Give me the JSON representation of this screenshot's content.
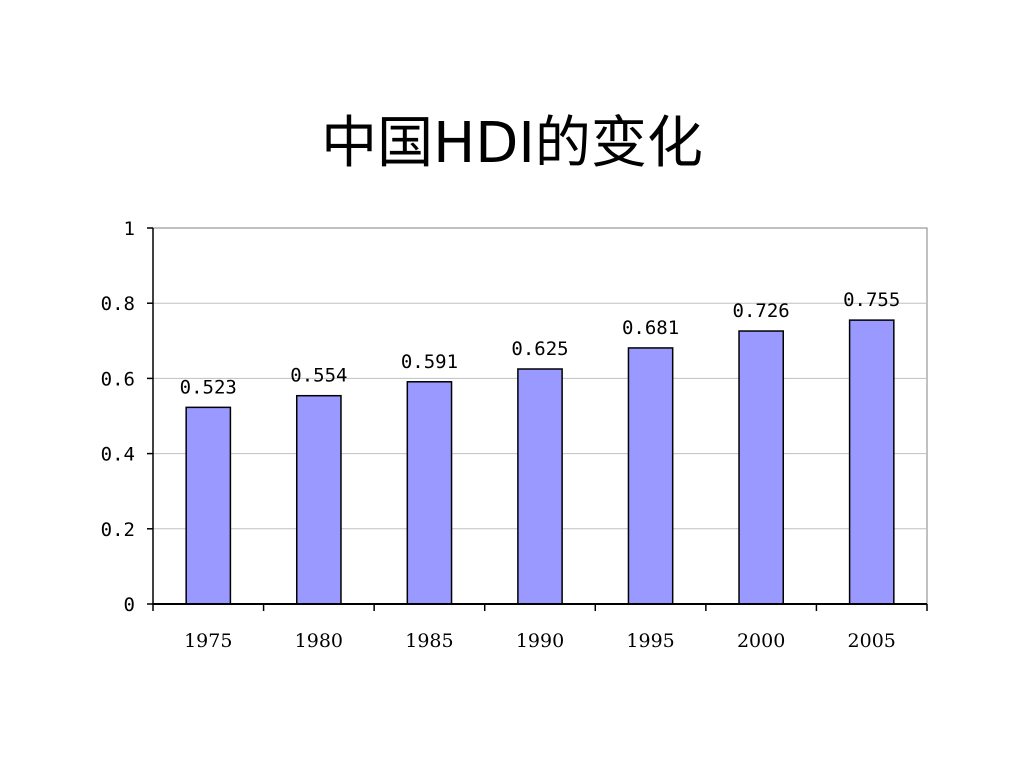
{
  "title": "中国HDI的变化",
  "chart_data": {
    "type": "bar",
    "title": "中国HDI的变化",
    "categories": [
      "1975",
      "1980",
      "1985",
      "1990",
      "1995",
      "2000",
      "2005"
    ],
    "values": [
      0.523,
      0.554,
      0.591,
      0.625,
      0.681,
      0.726,
      0.755
    ],
    "data_labels": [
      "0.523",
      "0.554",
      "0.591",
      "0.625",
      "0.681",
      "0.726",
      "0.755"
    ],
    "xlabel": "",
    "ylabel": "",
    "ylim": [
      0,
      1
    ],
    "yticks": [
      0,
      0.2,
      0.4,
      0.6,
      0.8,
      1
    ],
    "ytick_labels": [
      "0",
      "0.2",
      "0.4",
      "0.6",
      "0.8",
      "1"
    ],
    "grid": true,
    "legend": "none",
    "colors": {
      "bar_fill": "#9999ff",
      "bar_stroke": "#000000",
      "gridline": "#c0c0c0",
      "plot_border": "#808080",
      "axis": "#000000"
    }
  }
}
